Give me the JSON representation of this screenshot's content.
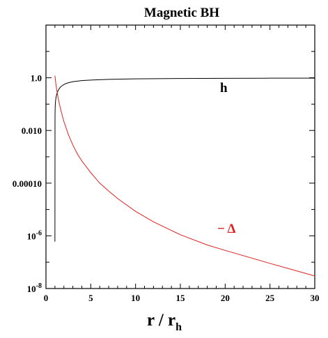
{
  "chart_data": {
    "type": "line",
    "title": "Magnetic BH",
    "xlabel": "r / r",
    "xlabel_sub": "h",
    "ylabel": "",
    "xlim": [
      0,
      30
    ],
    "ylim": [
      1e-08,
      100
    ],
    "yscale": "log",
    "grid": false,
    "x_ticks": [
      0,
      5,
      10,
      15,
      20,
      25,
      30
    ],
    "y_ticks": [
      {
        "value": 1,
        "label": "1.0"
      },
      {
        "value": 0.01,
        "label": "0.010"
      },
      {
        "value": 0.0001,
        "label": "0.00010"
      },
      {
        "value": 1e-06,
        "label_base": "10",
        "label_exp": "-6"
      },
      {
        "value": 1e-08,
        "label_base": "10",
        "label_exp": "-8"
      }
    ],
    "series": [
      {
        "name": "h",
        "color": "#000000",
        "x": [
          1.0,
          1.01,
          1.03,
          1.06,
          1.1,
          1.15,
          1.25,
          1.4,
          1.6,
          1.9,
          2.2,
          2.6,
          3.0,
          4.0,
          5.0,
          7.0,
          10.0,
          15.0,
          20.0,
          25.0,
          30.0
        ],
        "y": [
          6e-07,
          0.04,
          0.08,
          0.12,
          0.16,
          0.2,
          0.27,
          0.35,
          0.44,
          0.53,
          0.6,
          0.66,
          0.71,
          0.78,
          0.82,
          0.87,
          0.91,
          0.94,
          0.955,
          0.965,
          0.97
        ]
      },
      {
        "name": "− Δ",
        "color": "#e02020",
        "x": [
          1.0,
          1.1,
          1.2,
          1.35,
          1.5,
          1.75,
          2.0,
          2.5,
          3.0,
          3.5,
          4.0,
          5.0,
          6.0,
          7.0,
          8.0,
          10.0,
          12.0,
          15.0,
          18.0,
          20.0,
          25.0,
          30.0
        ],
        "y": [
          1.2,
          0.6,
          0.35,
          0.18,
          0.1,
          0.045,
          0.022,
          0.007,
          0.0028,
          0.0013,
          0.0007,
          0.00025,
          0.0001,
          5e-05,
          2.6e-05,
          8.5e-06,
          3.4e-06,
          1.1e-06,
          4.5e-07,
          2.8e-07,
          9e-08,
          3e-08
        ]
      }
    ]
  }
}
